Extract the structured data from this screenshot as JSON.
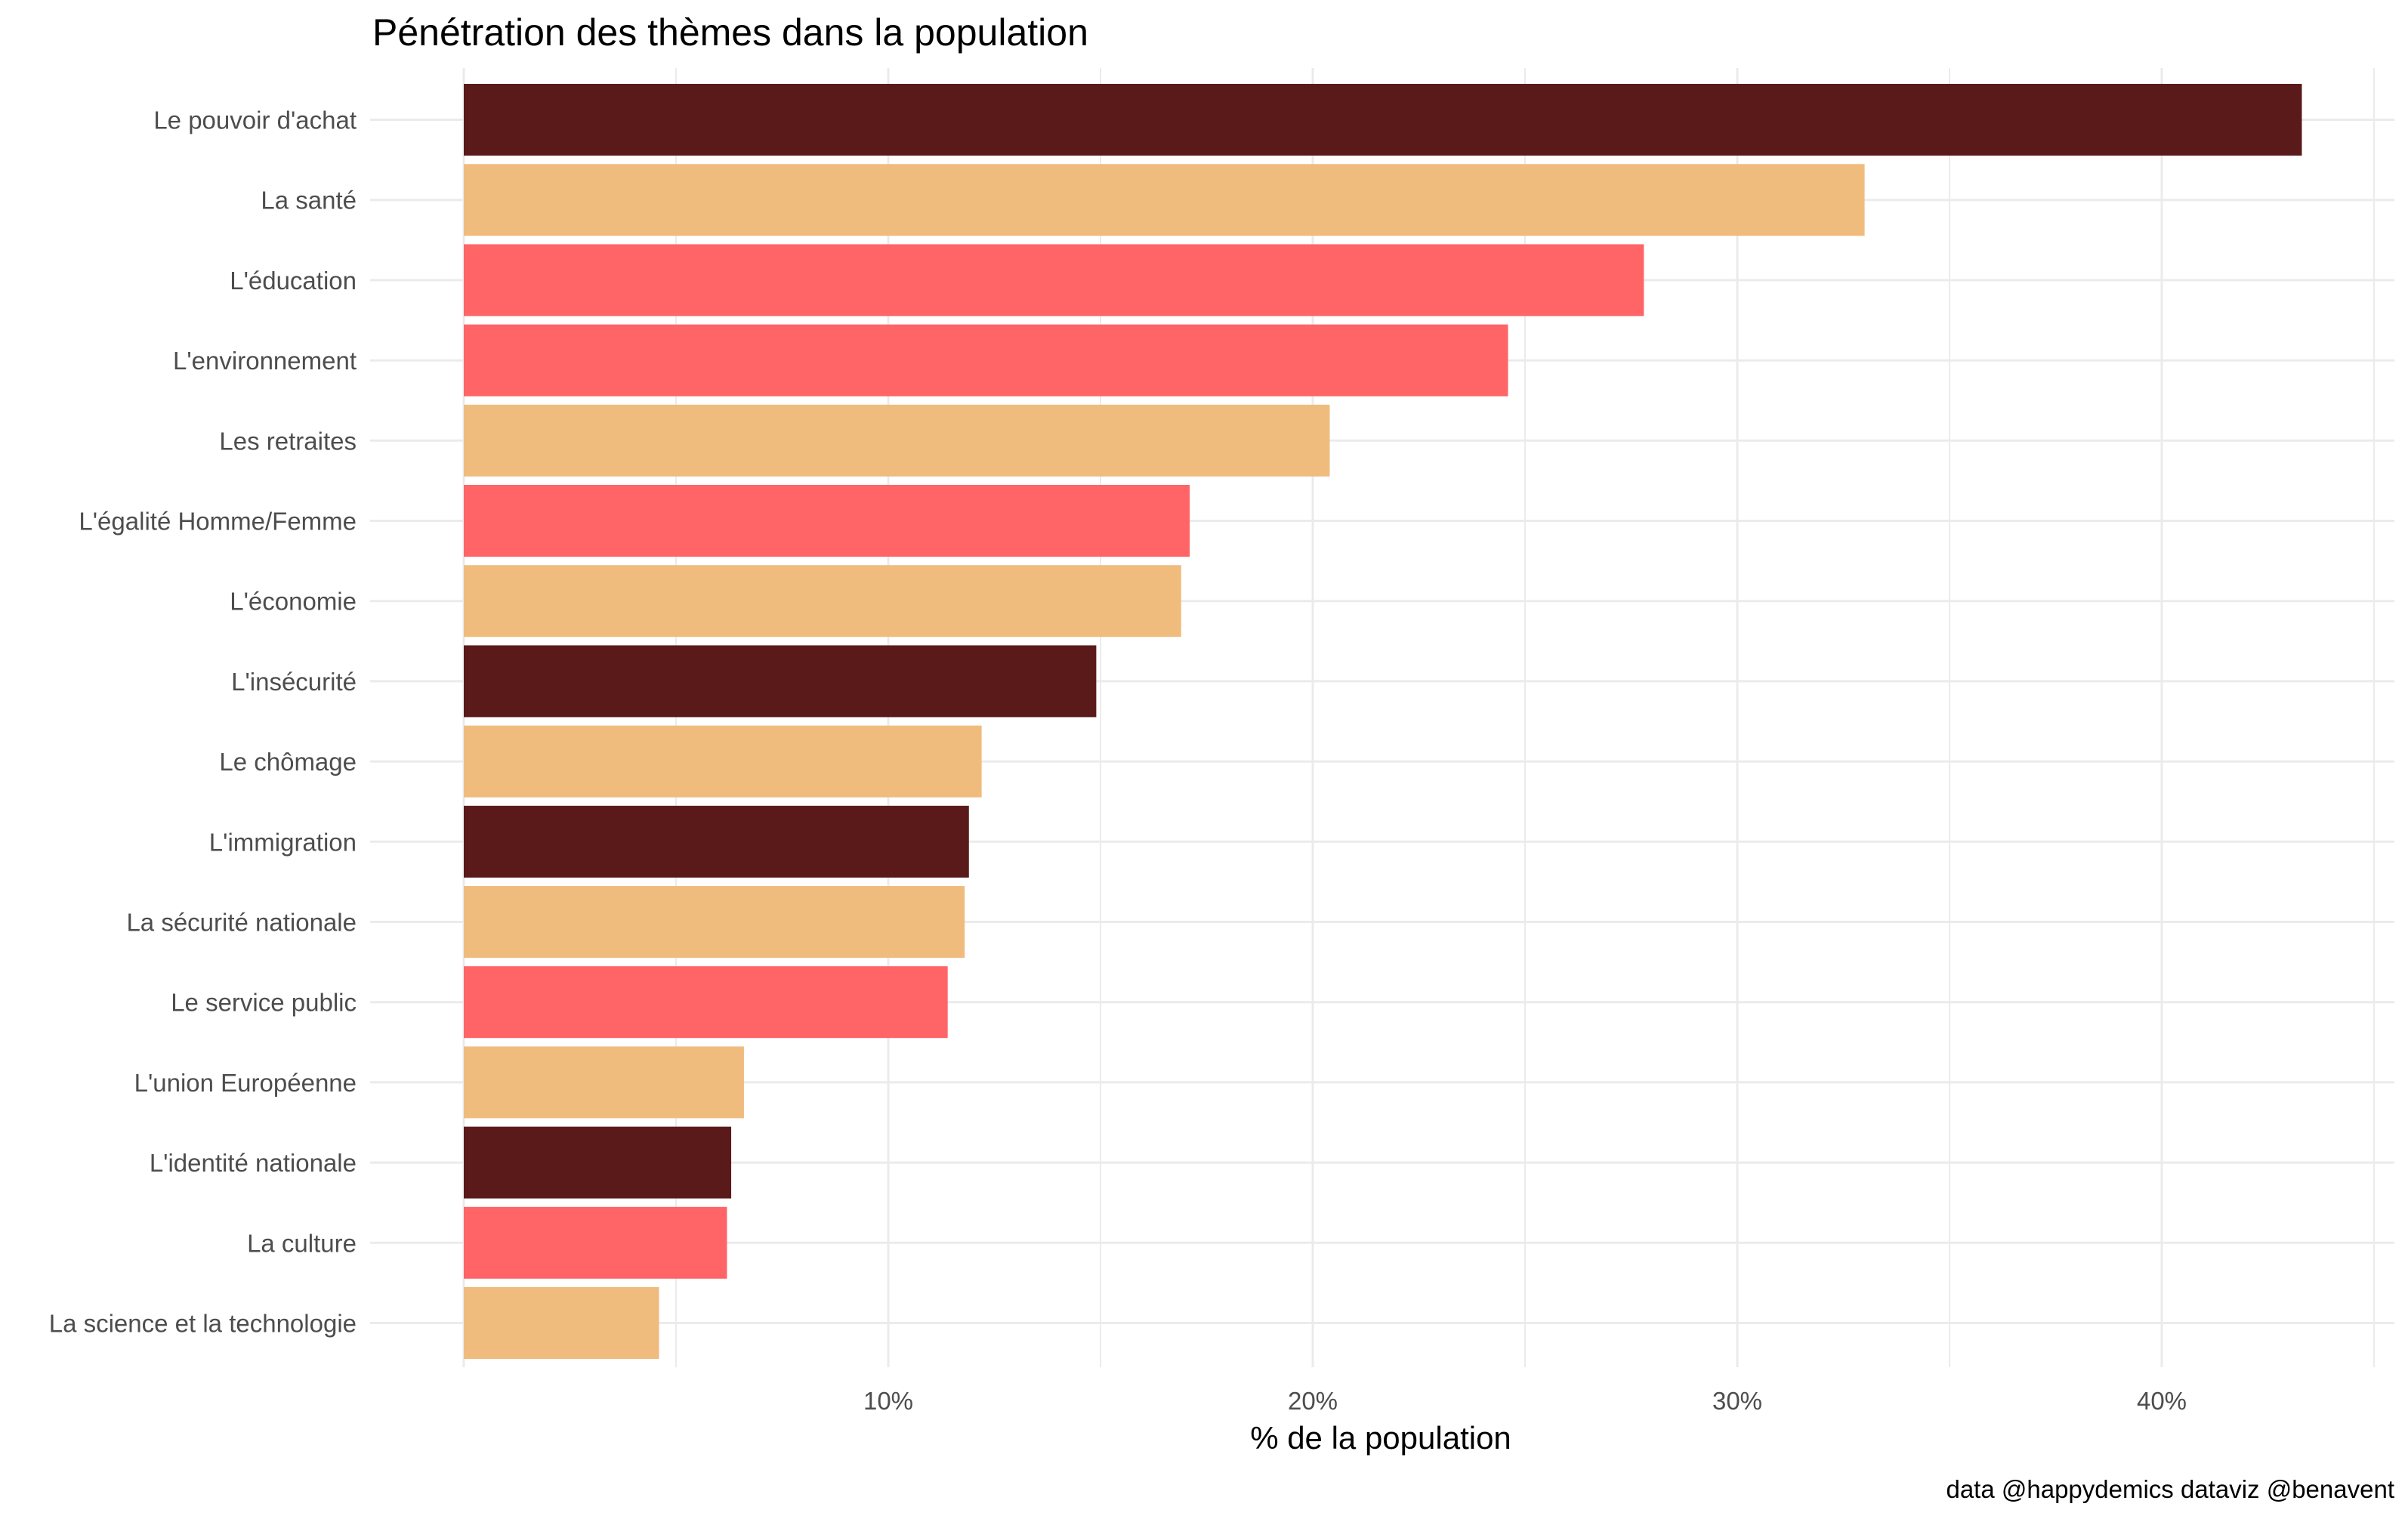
{
  "chart_data": {
    "type": "bar",
    "orientation": "horizontal",
    "title": "Pénétration des thèmes dans la population",
    "xlabel": "% de la population",
    "ylabel": "",
    "caption": "data @happydemics dataviz @benavent",
    "xlim": [
      0,
      45
    ],
    "xticks": [
      10,
      20,
      30,
      40
    ],
    "xtick_labels": [
      "10%",
      "20%",
      "30%",
      "40%"
    ],
    "grid": true,
    "legend": "none",
    "categories": [
      "Le pouvoir d'achat",
      "La santé",
      "L'éducation",
      "L'environnement",
      "Les retraites",
      "L'égalité Homme/Femme",
      "L'économie",
      "L'insécurité",
      "Le chômage",
      "L'immigration",
      "La sécurité nationale",
      "Le service public",
      "L'union Européenne",
      "L'identité nationale",
      "La culture",
      "La science et la technologie"
    ],
    "values": [
      43.3,
      33.0,
      27.8,
      24.6,
      20.4,
      17.1,
      16.9,
      14.9,
      12.2,
      11.9,
      11.8,
      11.4,
      6.6,
      6.3,
      6.2,
      4.6
    ],
    "colors": [
      "#5a1a1a",
      "#f0bc7e",
      "#ff6466",
      "#ff6466",
      "#f0bc7e",
      "#ff6466",
      "#f0bc7e",
      "#5a1a1a",
      "#f0bc7e",
      "#5a1a1a",
      "#f0bc7e",
      "#ff6466",
      "#f0bc7e",
      "#5a1a1a",
      "#ff6466",
      "#f0bc7e"
    ]
  }
}
